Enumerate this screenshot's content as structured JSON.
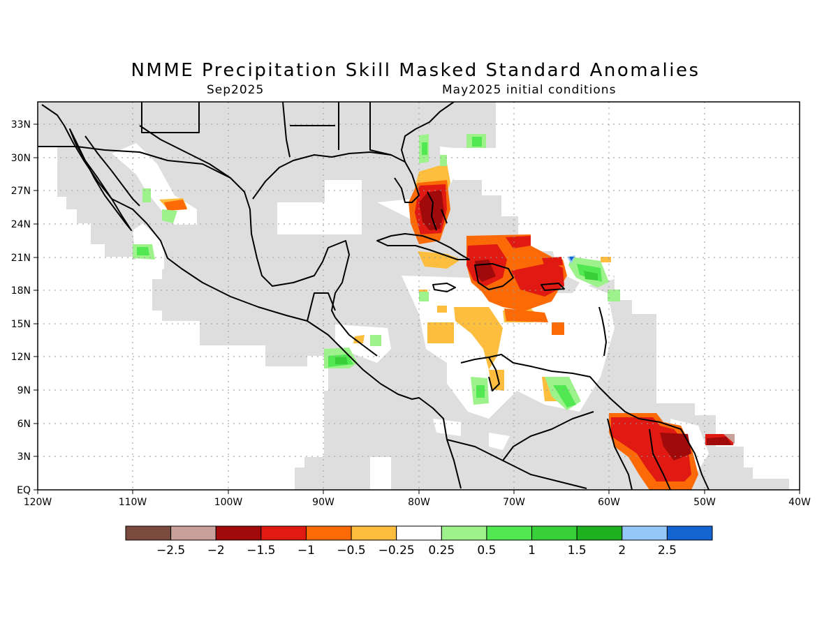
{
  "title": "NMME Precipitation Skill Masked Standard Anomalies",
  "subtitle_left": "Sep2025",
  "subtitle_right": "May2025 initial conditions",
  "map": {
    "lon_range": [
      -120,
      -40
    ],
    "lat_range": [
      0,
      35
    ],
    "grid": true,
    "lat_labels": [
      "EQ",
      "3N",
      "6N",
      "9N",
      "12N",
      "15N",
      "18N",
      "21N",
      "24N",
      "27N",
      "30N",
      "33N"
    ],
    "lon_labels": [
      "120W",
      "110W",
      "100W",
      "90W",
      "80W",
      "70W",
      "60W",
      "50W",
      "40W"
    ]
  },
  "colorbar": {
    "colors": [
      "#7a4a3f",
      "#c9a09a",
      "#a00a0a",
      "#e01a12",
      "#fc6a08",
      "#fdbd3e",
      "#ffffff",
      "#9ef28c",
      "#52e852",
      "#38d038",
      "#1eb01e",
      "#94c8f6",
      "#1464d2"
    ],
    "labels": [
      "-2.5",
      "-2",
      "-1.5",
      "-1",
      "-0.5",
      "-0.25",
      "0.25",
      "0.5",
      "1",
      "1.5",
      "2",
      "2.5"
    ]
  },
  "colors": {
    "masked_land": "#dedede",
    "frame": "#000000",
    "grid": "#999999"
  }
}
